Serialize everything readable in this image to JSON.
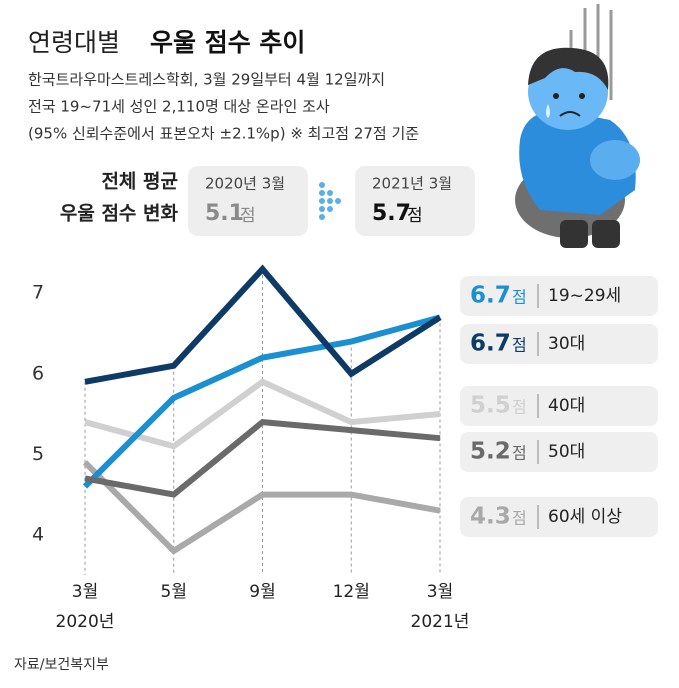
{
  "chart_data": {
    "type": "line",
    "title": "연령대별",
    "title_emphasis": "우울 점수 추이",
    "subtitle": [
      "한국트라우마스트레스학회, 3월 29일부터 4월 12일까지",
      "전국 19~71세 성인 2,110명 대상 온라인 조사",
      "(95% 신뢰수준에서 표본오차 ±2.1%p)  ※ 최고점 27점 기준"
    ],
    "summary": {
      "label": [
        "전체 평균",
        "우울 점수 변화"
      ],
      "items": [
        {
          "period": "2020년 3월",
          "value": 5.1
        },
        {
          "period": "2021년 3월",
          "value": 5.7
        }
      ]
    },
    "value_unit": "점",
    "categories": [
      "3월",
      "5월",
      "9월",
      "12월",
      "3월"
    ],
    "category_years": [
      "2020년",
      null,
      null,
      null,
      "2021년"
    ],
    "series": [
      {
        "name": "19~29세",
        "color": "#1b8fd2",
        "values": [
          4.6,
          5.7,
          6.2,
          6.4,
          6.7
        ]
      },
      {
        "name": "30대",
        "color": "#0e3a66",
        "values": [
          5.9,
          6.1,
          7.3,
          6.0,
          6.7
        ]
      },
      {
        "name": "40대",
        "color": "#d0d0d0",
        "values": [
          5.4,
          5.1,
          5.9,
          5.4,
          5.5
        ]
      },
      {
        "name": "50대",
        "color": "#6a6a6a",
        "values": [
          4.7,
          4.5,
          5.4,
          5.3,
          5.2
        ]
      },
      {
        "name": "60세 이상",
        "color": "#a9a9a9",
        "values": [
          4.9,
          3.8,
          4.5,
          4.5,
          4.3
        ]
      }
    ],
    "ylim": [
      3.7,
      7.4
    ],
    "yticks": [
      4,
      5,
      6,
      7
    ],
    "source": "자료/보건복지부"
  }
}
